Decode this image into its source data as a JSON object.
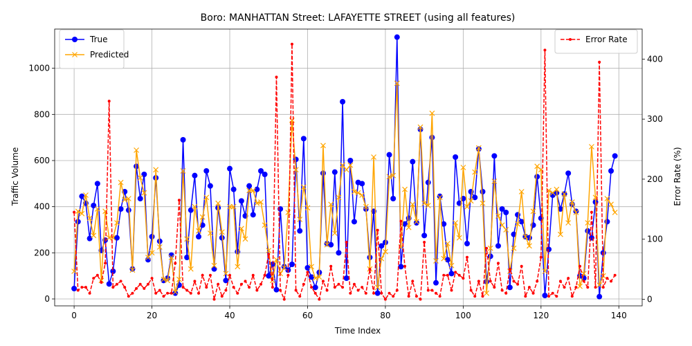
{
  "chart_data": {
    "type": "line",
    "title": "Boro: MANHATTAN Street: LAFAYETTE STREET (using all features)",
    "xlabel": "Time Index",
    "ylabel": "Traffic Volume",
    "y2label": "Error Rate (%)",
    "xlim": [
      -5,
      146
    ],
    "ylim": [
      -30,
      1170
    ],
    "y2lim": [
      -11,
      450
    ],
    "xticks": [
      0,
      20,
      40,
      60,
      80,
      100,
      120,
      140
    ],
    "yticks": [
      0,
      200,
      400,
      600,
      800,
      1000
    ],
    "y2ticks": [
      0,
      100,
      200,
      300,
      400
    ],
    "grid": true,
    "legend_left_position": "upper left",
    "legend_right_position": "upper right",
    "x": [
      0,
      1,
      2,
      3,
      4,
      5,
      6,
      7,
      8,
      9,
      10,
      11,
      12,
      13,
      14,
      15,
      16,
      17,
      18,
      19,
      20,
      21,
      22,
      23,
      24,
      25,
      26,
      27,
      28,
      29,
      30,
      31,
      32,
      33,
      34,
      35,
      36,
      37,
      38,
      39,
      40,
      41,
      42,
      43,
      44,
      45,
      46,
      47,
      48,
      49,
      50,
      51,
      52,
      53,
      54,
      55,
      56,
      57,
      58,
      59,
      60,
      61,
      62,
      63,
      64,
      65,
      66,
      67,
      68,
      69,
      70,
      71,
      72,
      73,
      74,
      75,
      76,
      77,
      78,
      79,
      80,
      81,
      82,
      83,
      84,
      85,
      86,
      87,
      88,
      89,
      90,
      91,
      92,
      93,
      94,
      95,
      96,
      97,
      98,
      99,
      100,
      101,
      102,
      103,
      104,
      105,
      106,
      107,
      108,
      109,
      110,
      111,
      112,
      113,
      114,
      115,
      116,
      117,
      118,
      119,
      120,
      121,
      122,
      123,
      124,
      125,
      126,
      127,
      128,
      129,
      130,
      131,
      132,
      133,
      134,
      135,
      136,
      137,
      138,
      139
    ],
    "series": [
      {
        "name": "True",
        "color": "#0000ff",
        "axis": "left",
        "marker": "circle",
        "values": [
          45,
          335,
          445,
          415,
          262,
          405,
          500,
          210,
          255,
          65,
          120,
          265,
          390,
          465,
          385,
          130,
          575,
          435,
          540,
          170,
          270,
          525,
          250,
          80,
          90,
          190,
          25,
          60,
          690,
          180,
          385,
          535,
          270,
          320,
          555,
          490,
          130,
          395,
          265,
          80,
          565,
          475,
          205,
          425,
          360,
          490,
          365,
          475,
          555,
          540,
          100,
          150,
          40,
          390,
          140,
          125,
          150,
          605,
          295,
          695,
          135,
          95,
          50,
          115,
          545,
          240,
          235,
          550,
          200,
          855,
          90,
          600,
          335,
          505,
          500,
          390,
          180,
          380,
          25,
          230,
          245,
          625,
          435,
          1135,
          140,
          325,
          350,
          595,
          330,
          735,
          275,
          505,
          700,
          70,
          445,
          325,
          170,
          110,
          615,
          415,
          435,
          240,
          465,
          440,
          650,
          465,
          75,
          185,
          620,
          230,
          390,
          375,
          50,
          280,
          365,
          335,
          270,
          265,
          320,
          530,
          350,
          15,
          215,
          450,
          460,
          390,
          455,
          545,
          410,
          380,
          100,
          90,
          295,
          265,
          420,
          10,
          200,
          335,
          555,
          620
        ]
      },
      {
        "name": "Predicted",
        "color": "#ffa500",
        "axis": "left",
        "marker": "x",
        "values": [
          120,
          380,
          370,
          450,
          350,
          275,
          390,
          80,
          380,
          265,
          265,
          330,
          505,
          430,
          435,
          125,
          645,
          525,
          460,
          180,
          200,
          560,
          225,
          85,
          80,
          180,
          30,
          85,
          555,
          260,
          130,
          400,
          295,
          355,
          440,
          285,
          145,
          415,
          290,
          110,
          400,
          400,
          140,
          305,
          260,
          470,
          470,
          415,
          420,
          320,
          210,
          80,
          170,
          110,
          135,
          375,
          775,
          560,
          345,
          485,
          395,
          140,
          90,
          95,
          665,
          235,
          410,
          285,
          440,
          580,
          560,
          580,
          465,
          460,
          450,
          400,
          130,
          615,
          50,
          175,
          205,
          530,
          535,
          935,
          225,
          475,
          310,
          410,
          335,
          745,
          415,
          405,
          805,
          165,
          440,
          175,
          240,
          145,
          330,
          265,
          570,
          400,
          425,
          550,
          655,
          415,
          25,
          220,
          510,
          360,
          320,
          300,
          120,
          220,
          325,
          465,
          270,
          230,
          380,
          575,
          560,
          120,
          470,
          460,
          475,
          280,
          455,
          330,
          420,
          375,
          55,
          110,
          330,
          660,
          440,
          60,
          100,
          435,
          410,
          375
        ]
      },
      {
        "name": "Error Rate",
        "color": "#ff0000",
        "axis": "right",
        "marker": "dot",
        "dashed": true,
        "values": [
          145,
          15,
          20,
          20,
          10,
          35,
          40,
          28,
          60,
          330,
          20,
          25,
          30,
          20,
          5,
          10,
          18,
          25,
          18,
          25,
          35,
          10,
          15,
          5,
          10,
          10,
          60,
          165,
          20,
          15,
          10,
          30,
          10,
          40,
          20,
          40,
          0,
          25,
          5,
          15,
          40,
          20,
          10,
          25,
          30,
          20,
          40,
          15,
          25,
          40,
          75,
          20,
          370,
          15,
          0,
          40,
          425,
          15,
          5,
          25,
          45,
          20,
          10,
          0,
          30,
          15,
          55,
          20,
          25,
          20,
          95,
          10,
          25,
          15,
          20,
          10,
          50,
          10,
          115,
          10,
          0,
          10,
          5,
          15,
          130,
          55,
          5,
          30,
          5,
          0,
          95,
          15,
          15,
          10,
          5,
          40,
          40,
          15,
          45,
          40,
          35,
          70,
          15,
          5,
          30,
          5,
          85,
          30,
          20,
          60,
          15,
          10,
          50,
          30,
          25,
          55,
          5,
          20,
          10,
          30,
          70,
          415,
          5,
          10,
          5,
          30,
          20,
          35,
          5,
          20,
          55,
          30,
          20,
          145,
          20,
          395,
          20,
          35,
          30,
          40
        ]
      }
    ]
  }
}
